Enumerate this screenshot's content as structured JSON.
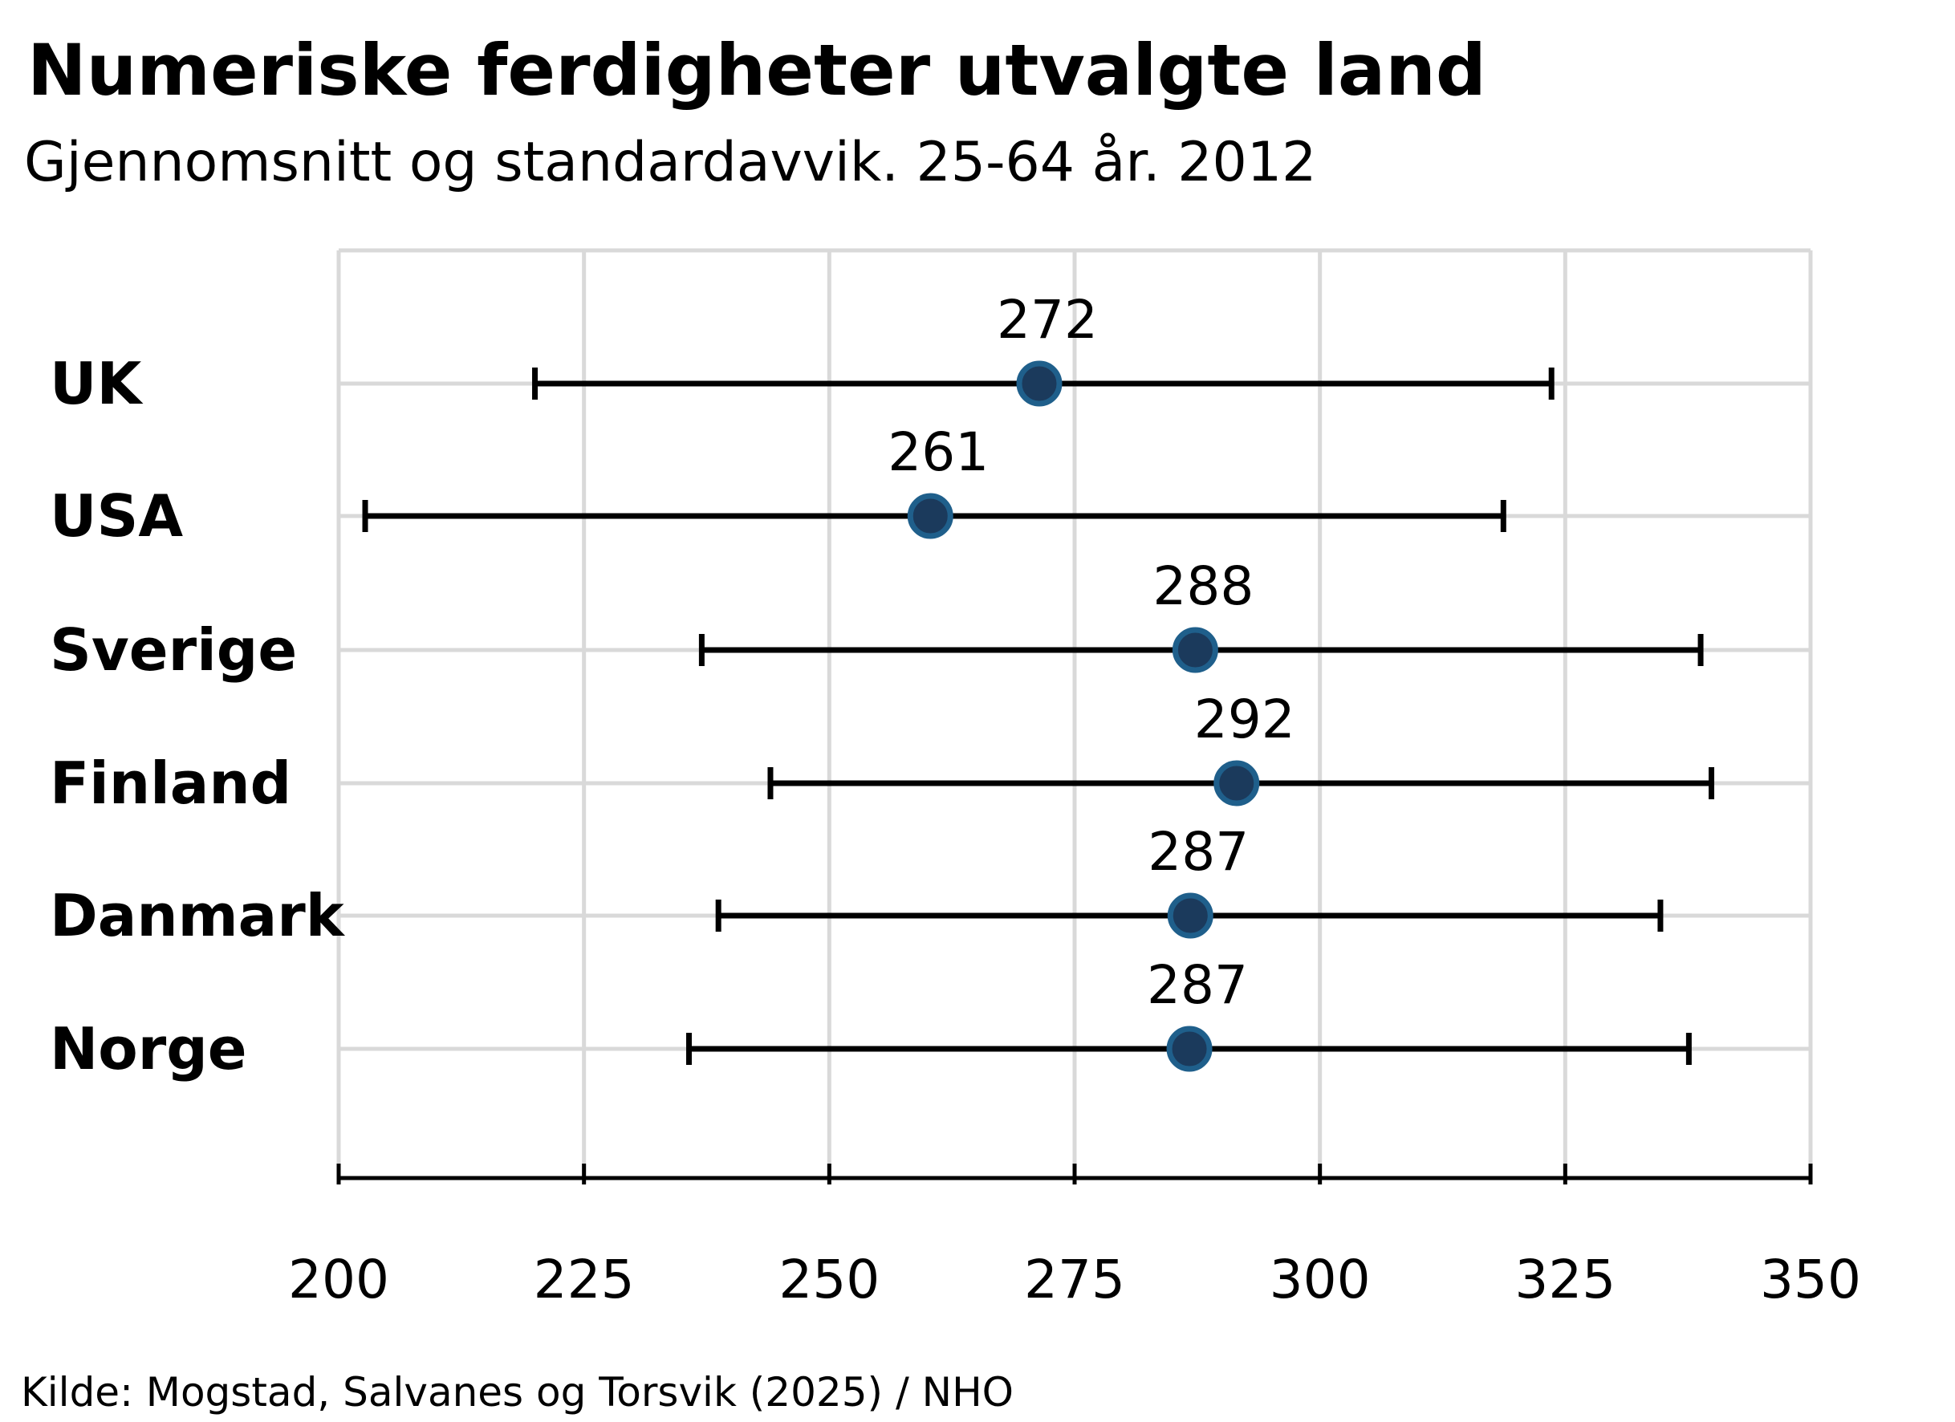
{
  "chart_data": {
    "type": "dot-range",
    "title": "Numeriske ferdigheter utvalgte land",
    "subtitle": "Gjennomsnitt og standardavvik. 25-64 år. 2012",
    "source": "Kilde: Mogstad, Salvanes og Torsvik (2025) / NHO",
    "xlabel": "",
    "ylabel": "",
    "xlim": [
      200,
      350
    ],
    "xticks": [
      "200",
      "225",
      "250",
      "275",
      "300",
      "325",
      "350"
    ],
    "grid": true,
    "categories": [
      "UK",
      "USA",
      "Sverige",
      "Finland",
      "Danmark",
      "Norge"
    ],
    "values": [
      272,
      261,
      288,
      292,
      287,
      287
    ],
    "plotted_mean": [
      271.4,
      260.3,
      287.3,
      291.5,
      286.8,
      286.7
    ],
    "lower": [
      220.0,
      202.7,
      237.0,
      244.0,
      238.7,
      235.7
    ],
    "upper": [
      323.6,
      318.7,
      338.8,
      339.9,
      334.7,
      337.6
    ],
    "data_labels": [
      "272",
      "261",
      "288",
      "292",
      "287",
      "287"
    ],
    "colors": {
      "point_fill": "#1b3a5c",
      "point_stroke": "#1f5f8b",
      "error_bar": "#000000",
      "grid": "#d9d9d9"
    }
  }
}
